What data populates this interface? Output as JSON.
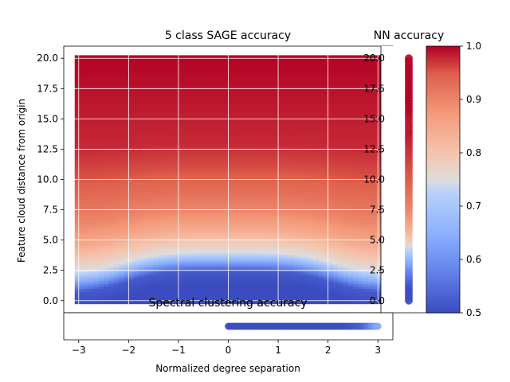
{
  "chart_data": [
    {
      "type": "heatmap",
      "title": "5 class SAGE accuracy",
      "xlabel": "Normalized degree separation",
      "ylabel": "Feature cloud distance from origin",
      "xlim": [
        -3.3,
        3.3
      ],
      "ylim": [
        -1.0,
        21.0
      ],
      "x_ticks": [
        -3,
        -2,
        -1,
        0,
        1,
        2,
        3
      ],
      "x_tick_labels": [
        "−3",
        "−2",
        "−1",
        "0",
        "1",
        "2",
        "3"
      ],
      "y_ticks": [
        0.0,
        2.5,
        5.0,
        7.5,
        10.0,
        12.5,
        15.0,
        17.5,
        20.0
      ],
      "y_tick_labels": [
        "0.0",
        "2.5",
        "5.0",
        "7.5",
        "10.0",
        "12.5",
        "15.0",
        "17.5",
        "20.0"
      ],
      "grid": true,
      "x_range": [
        -3,
        3
      ],
      "y_range": [
        0,
        20
      ],
      "accuracy_profile": {
        "y": [
          0,
          1.5,
          2.5,
          3.0,
          3.5,
          4.0,
          5.0,
          6.0,
          7.5,
          9.0,
          11.0,
          13.0,
          20.0
        ],
        "accuracy_at_center": [
          0.5,
          0.5,
          0.52,
          0.6,
          0.68,
          0.75,
          0.8,
          0.85,
          0.9,
          0.93,
          0.96,
          0.98,
          1.0
        ]
      }
    },
    {
      "type": "scatter",
      "title": "NN accuracy",
      "y_ticks": [
        0.0,
        2.5,
        5.0,
        7.5,
        10.0,
        12.5,
        15.0,
        17.5,
        20.0
      ],
      "y_tick_labels": [
        "0.0",
        "2.5",
        "5.0",
        "7.5",
        "10.0",
        "12.5",
        "15.0",
        "17.5",
        "20.0"
      ],
      "points": [
        {
          "y": 0.0,
          "acc": 0.5
        },
        {
          "y": 0.5,
          "acc": 0.5
        },
        {
          "y": 1.0,
          "acc": 0.5
        },
        {
          "y": 1.5,
          "acc": 0.52
        },
        {
          "y": 2.0,
          "acc": 0.55
        },
        {
          "y": 2.5,
          "acc": 0.58
        },
        {
          "y": 3.0,
          "acc": 0.62
        },
        {
          "y": 3.5,
          "acc": 0.66
        },
        {
          "y": 4.0,
          "acc": 0.7
        },
        {
          "y": 4.5,
          "acc": 0.74
        },
        {
          "y": 5.0,
          "acc": 0.78
        },
        {
          "y": 5.5,
          "acc": 0.81
        },
        {
          "y": 6.0,
          "acc": 0.84
        },
        {
          "y": 6.5,
          "acc": 0.86
        },
        {
          "y": 7.0,
          "acc": 0.88
        },
        {
          "y": 7.5,
          "acc": 0.9
        },
        {
          "y": 8.0,
          "acc": 0.91
        },
        {
          "y": 9.0,
          "acc": 0.93
        },
        {
          "y": 10.0,
          "acc": 0.95
        },
        {
          "y": 11.0,
          "acc": 0.96
        },
        {
          "y": 12.0,
          "acc": 0.97
        },
        {
          "y": 13.0,
          "acc": 0.98
        },
        {
          "y": 14.0,
          "acc": 0.99
        },
        {
          "y": 15.0,
          "acc": 0.99
        },
        {
          "y": 16.0,
          "acc": 1.0
        },
        {
          "y": 17.0,
          "acc": 1.0
        },
        {
          "y": 18.0,
          "acc": 1.0
        },
        {
          "y": 19.0,
          "acc": 1.0
        },
        {
          "y": 20.0,
          "acc": 1.0
        }
      ]
    },
    {
      "type": "scatter",
      "title": "Spectral clustering accuracy",
      "points": [
        {
          "x": 0.0,
          "acc": 0.5
        },
        {
          "x": 0.25,
          "acc": 0.5
        },
        {
          "x": 0.5,
          "acc": 0.5
        },
        {
          "x": 0.75,
          "acc": 0.5
        },
        {
          "x": 1.0,
          "acc": 0.5
        },
        {
          "x": 1.25,
          "acc": 0.5
        },
        {
          "x": 1.5,
          "acc": 0.5
        },
        {
          "x": 1.75,
          "acc": 0.5
        },
        {
          "x": 2.0,
          "acc": 0.5
        },
        {
          "x": 2.25,
          "acc": 0.5
        },
        {
          "x": 2.5,
          "acc": 0.51
        },
        {
          "x": 2.7,
          "acc": 0.53
        },
        {
          "x": 2.8,
          "acc": 0.56
        },
        {
          "x": 2.9,
          "acc": 0.6
        },
        {
          "x": 3.0,
          "acc": 0.64
        }
      ]
    },
    {
      "type": "colorbar",
      "range": [
        0.5,
        1.0
      ],
      "ticks": [
        0.5,
        0.6,
        0.7,
        0.8,
        0.9,
        1.0
      ],
      "tick_labels": [
        "0.5",
        "0.6",
        "0.7",
        "0.8",
        "0.9",
        "1.0"
      ],
      "colormap": "coolwarm"
    }
  ]
}
